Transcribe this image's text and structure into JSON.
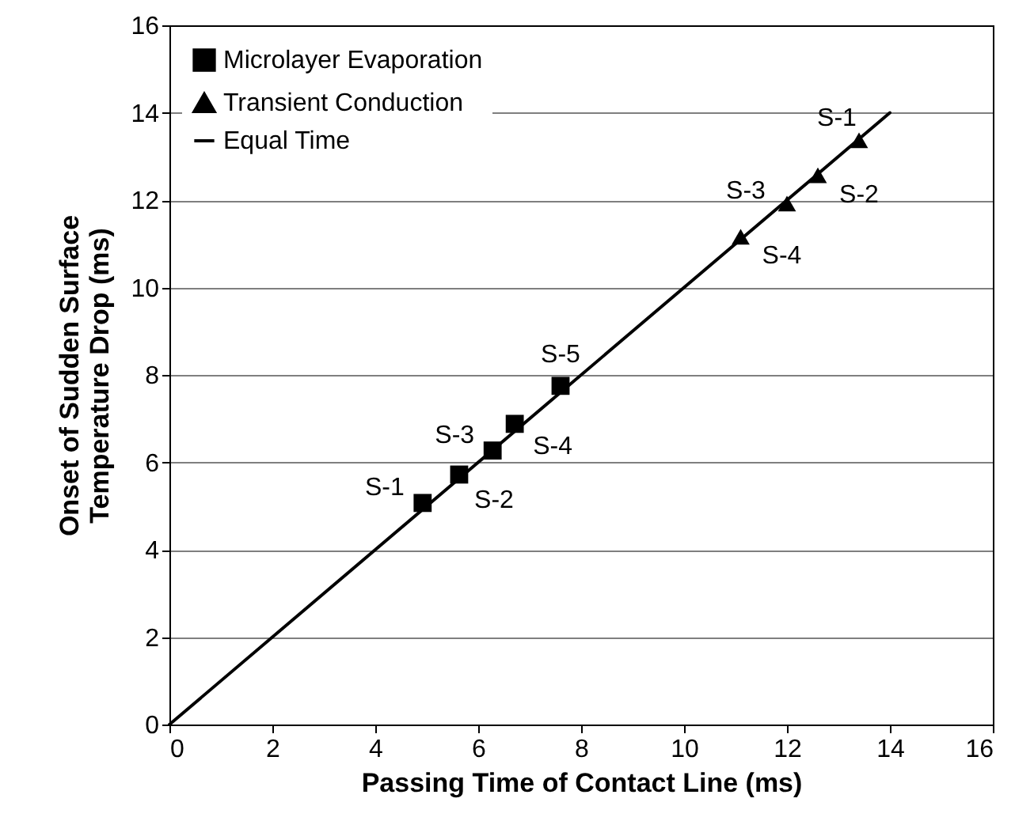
{
  "chart_data": {
    "type": "scatter",
    "xlabel": "Passing Time of Contact Line (ms)",
    "ylabel": "Onset of Sudden Surface Temperature Drop (ms)",
    "xlim": [
      0,
      16
    ],
    "xticks": [
      0,
      2,
      4,
      6,
      8,
      10,
      12,
      14,
      16
    ],
    "ylim": [
      0,
      16
    ],
    "yticks": [
      0,
      2,
      4,
      6,
      8,
      10,
      12,
      14,
      16
    ],
    "grid": "y",
    "legend": "top left",
    "series": [
      {
        "name": "Microlayer Evaporation",
        "color": "#000000",
        "marker": "square",
        "x": [
          4.92,
          5.63,
          6.28,
          6.71,
          7.6
        ],
        "values": [
          5.07,
          5.72,
          6.27,
          6.88,
          7.75
        ]
      },
      {
        "name": "Transient Conduction",
        "color": "#000000",
        "marker": "triangle",
        "x": [
          13.4,
          12.6,
          12.0,
          11.1
        ],
        "values": [
          13.37,
          12.57,
          11.92,
          11.16
        ]
      },
      {
        "name": "Equal Time",
        "type": "line",
        "color": "#000000",
        "marker": "none",
        "x": [
          0,
          14
        ],
        "values": [
          0,
          14
        ]
      }
    ],
    "annotations": [
      {
        "text": "S-1",
        "x": 4.92,
        "y": 5.07
      },
      {
        "text": "S-2",
        "x": 5.63,
        "y": 5.72
      },
      {
        "text": "S-3",
        "x": 6.28,
        "y": 6.27
      },
      {
        "text": "S-4",
        "x": 6.71,
        "y": 6.88
      },
      {
        "text": "S-5",
        "x": 7.6,
        "y": 7.75
      },
      {
        "text": "S-1",
        "x": 13.4,
        "y": 13.37
      },
      {
        "text": "S-2",
        "x": 12.6,
        "y": 12.57
      },
      {
        "text": "S-3",
        "x": 12.0,
        "y": 11.92
      },
      {
        "text": "S-4",
        "x": 11.1,
        "y": 11.16
      }
    ]
  }
}
